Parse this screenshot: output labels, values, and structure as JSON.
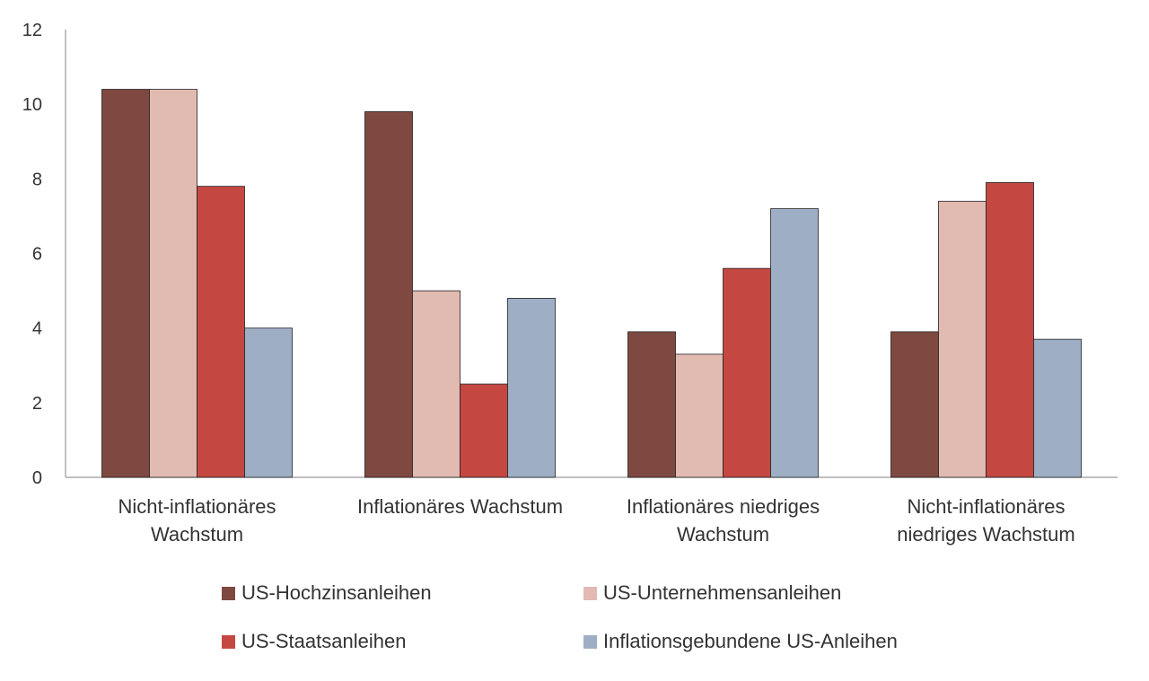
{
  "chart_data": {
    "type": "bar",
    "title": "",
    "xlabel": "",
    "ylabel": "",
    "ylim": [
      0,
      12
    ],
    "yticks": [
      0,
      2,
      4,
      6,
      8,
      10,
      12
    ],
    "grid": false,
    "legend_position": "bottom",
    "categories": [
      [
        "Nicht-inflationäres",
        "Wachstum"
      ],
      [
        "Inflationäres Wachstum"
      ],
      [
        "Inflationäres niedriges",
        "Wachstum"
      ],
      [
        "Nicht-inflationäres",
        "niedriges Wachstum"
      ]
    ],
    "series": [
      {
        "name": "US-Hochzinsanleihen",
        "color": "#7f4840",
        "values": [
          10.4,
          9.8,
          3.9,
          3.9
        ]
      },
      {
        "name": "US-Unternehmensanleihen",
        "color": "#e1bab1",
        "values": [
          10.4,
          5.0,
          3.3,
          7.4
        ]
      },
      {
        "name": "US-Staatsanleihen",
        "color": "#c44841",
        "values": [
          7.8,
          2.5,
          5.6,
          7.9
        ]
      },
      {
        "name": "Inflationsgebundene US-Anleihen",
        "color": "#9eafc5",
        "values": [
          4.0,
          4.8,
          7.2,
          3.7
        ]
      }
    ]
  }
}
